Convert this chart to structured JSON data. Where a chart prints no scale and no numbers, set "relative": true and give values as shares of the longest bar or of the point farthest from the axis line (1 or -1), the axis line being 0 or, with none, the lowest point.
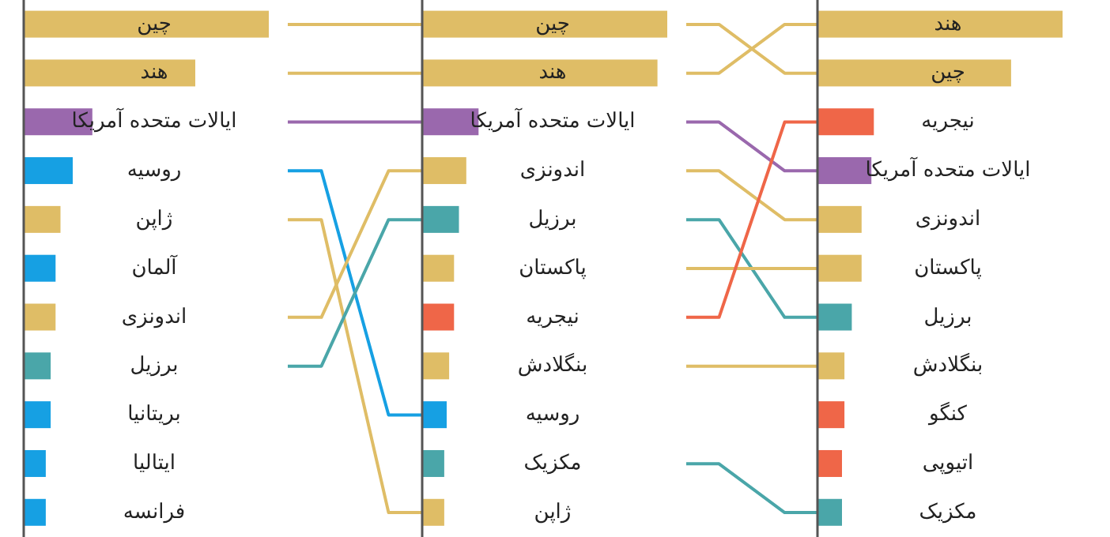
{
  "chart_data": [
    {
      "type": "bar",
      "orientation": "horizontal",
      "relative": true,
      "categories": [
        "چین",
        "هند",
        "ایالات متحده آمریکا",
        "روسیه",
        "ژاپن",
        "آلمان",
        "اندونزی",
        "برزیل",
        "بریتانیا",
        "ایتالیا",
        "فرانسه"
      ],
      "values": [
        1,
        0.7,
        0.28,
        0.2,
        0.15,
        0.13,
        0.13,
        0.11,
        0.11,
        0.09,
        0.09
      ],
      "colors": [
        "#dfbd66",
        "#dfbd66",
        "#9a68ad",
        "#16a0e3",
        "#dfbd66",
        "#16a0e3",
        "#dfbd66",
        "#4aa6a9",
        "#16a0e3",
        "#16a0e3",
        "#16a0e3"
      ]
    },
    {
      "type": "bar",
      "orientation": "horizontal",
      "relative": true,
      "categories": [
        "چین",
        "هند",
        "ایالات متحده آمریکا",
        "اندونزی",
        "برزیل",
        "پاکستان",
        "نیجریه",
        "بنگلادش",
        "روسیه",
        "مکزیک",
        "ژاپن"
      ],
      "values": [
        1,
        0.96,
        0.23,
        0.18,
        0.15,
        0.13,
        0.13,
        0.11,
        0.1,
        0.09,
        0.09
      ],
      "colors": [
        "#dfbd66",
        "#dfbd66",
        "#9a68ad",
        "#dfbd66",
        "#4aa6a9",
        "#dfbd66",
        "#ef6648",
        "#dfbd66",
        "#16a0e3",
        "#4aa6a9",
        "#dfbd66"
      ]
    },
    {
      "type": "bar",
      "orientation": "horizontal",
      "relative": true,
      "categories": [
        "هند",
        "چین",
        "نیجریه",
        "ایالات متحده آمریکا",
        "اندونزی",
        "پاکستان",
        "برزیل",
        "بنگلادش",
        "کنگو",
        "اتیوپی",
        "مکزیک"
      ],
      "values": [
        1,
        0.79,
        0.23,
        0.22,
        0.18,
        0.18,
        0.14,
        0.11,
        0.11,
        0.1,
        0.1
      ],
      "colors": [
        "#dfbd66",
        "#dfbd66",
        "#ef6648",
        "#9a68ad",
        "#dfbd66",
        "#dfbd66",
        "#4aa6a9",
        "#dfbd66",
        "#ef6648",
        "#ef6648",
        "#4aa6a9"
      ]
    }
  ]
}
